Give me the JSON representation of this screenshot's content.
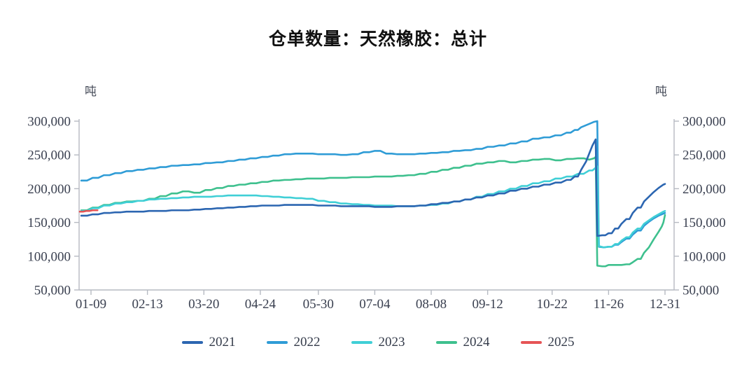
{
  "title": "仓单数量：天然橡胶：总计",
  "y_axis": {
    "unit": "吨",
    "tick_values": [
      50000,
      100000,
      150000,
      200000,
      250000,
      300000
    ],
    "tick_labels": [
      "50,000",
      "100,000",
      "150,000",
      "200,000",
      "250,000",
      "300,000"
    ]
  },
  "x_axis": {
    "tick_labels": [
      "01-09",
      "02-13",
      "03-20",
      "04-24",
      "05-30",
      "07-04",
      "08-08",
      "09-12",
      "10-22",
      "11-26",
      "12-31"
    ],
    "tick_days": [
      9,
      44,
      79,
      114,
      150,
      185,
      220,
      255,
      295,
      330,
      365
    ]
  },
  "chart_data": {
    "type": "line",
    "title": "仓单数量：天然橡胶：总计",
    "ylabel": "吨",
    "ylim": [
      50000,
      300000
    ],
    "x_unit": "day-of-year",
    "grid": false,
    "legend_position": "bottom",
    "x_ticks": [
      {
        "day": 9,
        "label": "01-09"
      },
      {
        "day": 44,
        "label": "02-13"
      },
      {
        "day": 79,
        "label": "03-20"
      },
      {
        "day": 114,
        "label": "04-24"
      },
      {
        "day": 150,
        "label": "05-30"
      },
      {
        "day": 185,
        "label": "07-04"
      },
      {
        "day": 220,
        "label": "08-08"
      },
      {
        "day": 255,
        "label": "09-12"
      },
      {
        "day": 295,
        "label": "10-22"
      },
      {
        "day": 330,
        "label": "11-26"
      },
      {
        "day": 365,
        "label": "12-31"
      }
    ],
    "series": [
      {
        "name": "2022",
        "color": "#2f9cd6",
        "points": [
          [
            3,
            212000
          ],
          [
            10,
            216000
          ],
          [
            17,
            220000
          ],
          [
            24,
            223000
          ],
          [
            31,
            226000
          ],
          [
            38,
            228000
          ],
          [
            45,
            230000
          ],
          [
            52,
            232000
          ],
          [
            59,
            234000
          ],
          [
            66,
            235000
          ],
          [
            73,
            236000
          ],
          [
            80,
            238000
          ],
          [
            87,
            239000
          ],
          [
            94,
            241000
          ],
          [
            101,
            243000
          ],
          [
            108,
            245000
          ],
          [
            115,
            247000
          ],
          [
            122,
            249000
          ],
          [
            129,
            251000
          ],
          [
            136,
            252000
          ],
          [
            143,
            252000
          ],
          [
            150,
            251000
          ],
          [
            157,
            251000
          ],
          [
            164,
            250000
          ],
          [
            171,
            251000
          ],
          [
            178,
            254000
          ],
          [
            185,
            256000
          ],
          [
            192,
            252000
          ],
          [
            199,
            251000
          ],
          [
            206,
            251000
          ],
          [
            213,
            252000
          ],
          [
            220,
            253000
          ],
          [
            227,
            254000
          ],
          [
            234,
            256000
          ],
          [
            241,
            257000
          ],
          [
            248,
            259000
          ],
          [
            255,
            262000
          ],
          [
            262,
            264000
          ],
          [
            269,
            267000
          ],
          [
            276,
            270000
          ],
          [
            283,
            274000
          ],
          [
            290,
            276000
          ],
          [
            297,
            279000
          ],
          [
            304,
            283000
          ],
          [
            309,
            287000
          ],
          [
            313,
            291000
          ],
          [
            316,
            294000
          ],
          [
            319,
            297000
          ],
          [
            321,
            299000
          ],
          [
            323,
            300000
          ],
          [
            324,
            114000
          ],
          [
            327,
            113000
          ],
          [
            330,
            114000
          ],
          [
            334,
            117000
          ],
          [
            338,
            121000
          ],
          [
            341,
            126000
          ],
          [
            345,
            132000
          ],
          [
            348,
            138000
          ],
          [
            352,
            145000
          ],
          [
            355,
            151000
          ],
          [
            358,
            156000
          ],
          [
            361,
            160000
          ],
          [
            364,
            163000
          ],
          [
            365,
            164000
          ]
        ]
      },
      {
        "name": "2024",
        "color": "#3ec08e",
        "points": [
          [
            3,
            168000
          ],
          [
            10,
            172000
          ],
          [
            17,
            176000
          ],
          [
            24,
            179000
          ],
          [
            31,
            181000
          ],
          [
            38,
            182000
          ],
          [
            45,
            185000
          ],
          [
            52,
            189000
          ],
          [
            59,
            193000
          ],
          [
            66,
            196000
          ],
          [
            73,
            194000
          ],
          [
            80,
            198000
          ],
          [
            87,
            201000
          ],
          [
            94,
            204000
          ],
          [
            101,
            206000
          ],
          [
            108,
            208000
          ],
          [
            115,
            210000
          ],
          [
            122,
            212000
          ],
          [
            129,
            213000
          ],
          [
            136,
            214000
          ],
          [
            143,
            215000
          ],
          [
            150,
            215000
          ],
          [
            157,
            216000
          ],
          [
            164,
            216000
          ],
          [
            171,
            217000
          ],
          [
            178,
            217000
          ],
          [
            185,
            218000
          ],
          [
            192,
            218000
          ],
          [
            199,
            219000
          ],
          [
            206,
            220000
          ],
          [
            213,
            222000
          ],
          [
            220,
            225000
          ],
          [
            227,
            228000
          ],
          [
            234,
            231000
          ],
          [
            241,
            234000
          ],
          [
            248,
            237000
          ],
          [
            255,
            239000
          ],
          [
            262,
            241000
          ],
          [
            269,
            239000
          ],
          [
            276,
            241000
          ],
          [
            283,
            243000
          ],
          [
            290,
            244000
          ],
          [
            297,
            242000
          ],
          [
            304,
            244000
          ],
          [
            311,
            245000
          ],
          [
            318,
            243000
          ],
          [
            321,
            245000
          ],
          [
            322,
            247000
          ],
          [
            323,
            86000
          ],
          [
            326,
            85000
          ],
          [
            330,
            87000
          ],
          [
            334,
            87000
          ],
          [
            338,
            87000
          ],
          [
            341,
            88000
          ],
          [
            345,
            91000
          ],
          [
            348,
            96000
          ],
          [
            352,
            105000
          ],
          [
            355,
            113000
          ],
          [
            358,
            125000
          ],
          [
            361,
            136000
          ],
          [
            363,
            144000
          ],
          [
            364,
            150000
          ],
          [
            365,
            161000
          ]
        ]
      },
      {
        "name": "2023",
        "color": "#40cfd6",
        "points": [
          [
            3,
            167000
          ],
          [
            10,
            171000
          ],
          [
            17,
            175000
          ],
          [
            24,
            178000
          ],
          [
            31,
            180000
          ],
          [
            38,
            182000
          ],
          [
            45,
            184000
          ],
          [
            52,
            185000
          ],
          [
            59,
            186000
          ],
          [
            66,
            187000
          ],
          [
            73,
            188000
          ],
          [
            80,
            188000
          ],
          [
            87,
            189000
          ],
          [
            94,
            190000
          ],
          [
            101,
            190000
          ],
          [
            108,
            190000
          ],
          [
            115,
            189000
          ],
          [
            122,
            188000
          ],
          [
            129,
            187000
          ],
          [
            136,
            186000
          ],
          [
            143,
            185000
          ],
          [
            150,
            182000
          ],
          [
            157,
            180000
          ],
          [
            164,
            178000
          ],
          [
            171,
            177000
          ],
          [
            178,
            176000
          ],
          [
            185,
            175000
          ],
          [
            192,
            175000
          ],
          [
            199,
            174000
          ],
          [
            206,
            174000
          ],
          [
            213,
            175000
          ],
          [
            220,
            176000
          ],
          [
            227,
            178000
          ],
          [
            234,
            181000
          ],
          [
            241,
            184000
          ],
          [
            248,
            188000
          ],
          [
            255,
            192000
          ],
          [
            262,
            196000
          ],
          [
            269,
            200000
          ],
          [
            276,
            204000
          ],
          [
            283,
            208000
          ],
          [
            290,
            211000
          ],
          [
            297,
            215000
          ],
          [
            304,
            218000
          ],
          [
            311,
            222000
          ],
          [
            318,
            227000
          ],
          [
            322,
            231000
          ],
          [
            323,
            233000
          ],
          [
            324,
            115000
          ],
          [
            327,
            113000
          ],
          [
            330,
            114000
          ],
          [
            334,
            118000
          ],
          [
            338,
            123000
          ],
          [
            341,
            128000
          ],
          [
            345,
            135000
          ],
          [
            348,
            141000
          ],
          [
            352,
            148000
          ],
          [
            355,
            153000
          ],
          [
            358,
            158000
          ],
          [
            361,
            162000
          ],
          [
            364,
            166000
          ],
          [
            365,
            167000
          ]
        ]
      },
      {
        "name": "2021",
        "color": "#2c66b1",
        "points": [
          [
            3,
            160000
          ],
          [
            10,
            162000
          ],
          [
            17,
            164000
          ],
          [
            24,
            165000
          ],
          [
            31,
            166000
          ],
          [
            38,
            166000
          ],
          [
            45,
            167000
          ],
          [
            52,
            167000
          ],
          [
            59,
            168000
          ],
          [
            66,
            168000
          ],
          [
            73,
            169000
          ],
          [
            80,
            170000
          ],
          [
            87,
            171000
          ],
          [
            94,
            172000
          ],
          [
            101,
            173000
          ],
          [
            108,
            174000
          ],
          [
            115,
            175000
          ],
          [
            122,
            175000
          ],
          [
            129,
            176000
          ],
          [
            136,
            176000
          ],
          [
            143,
            176000
          ],
          [
            150,
            175000
          ],
          [
            157,
            175000
          ],
          [
            164,
            174000
          ],
          [
            171,
            174000
          ],
          [
            178,
            174000
          ],
          [
            185,
            173000
          ],
          [
            192,
            173000
          ],
          [
            199,
            174000
          ],
          [
            206,
            174000
          ],
          [
            213,
            175000
          ],
          [
            220,
            177000
          ],
          [
            227,
            179000
          ],
          [
            234,
            181000
          ],
          [
            241,
            184000
          ],
          [
            248,
            187000
          ],
          [
            255,
            190000
          ],
          [
            262,
            193000
          ],
          [
            269,
            197000
          ],
          [
            276,
            200000
          ],
          [
            283,
            203000
          ],
          [
            290,
            206000
          ],
          [
            297,
            209000
          ],
          [
            304,
            213000
          ],
          [
            309,
            218000
          ],
          [
            313,
            228000
          ],
          [
            316,
            240000
          ],
          [
            318,
            252000
          ],
          [
            320,
            264000
          ],
          [
            322,
            273000
          ],
          [
            323,
            130000
          ],
          [
            326,
            131000
          ],
          [
            330,
            134000
          ],
          [
            334,
            141000
          ],
          [
            338,
            148000
          ],
          [
            341,
            155000
          ],
          [
            345,
            164000
          ],
          [
            348,
            172000
          ],
          [
            352,
            181000
          ],
          [
            355,
            188000
          ],
          [
            358,
            195000
          ],
          [
            361,
            201000
          ],
          [
            364,
            206000
          ],
          [
            365,
            207000
          ]
        ]
      },
      {
        "name": "2025",
        "color": "#e65456",
        "points": [
          [
            2,
            166000
          ],
          [
            6,
            167000
          ],
          [
            10,
            168000
          ],
          [
            13,
            168000
          ]
        ]
      }
    ]
  },
  "legend": {
    "order": [
      "2021",
      "2022",
      "2023",
      "2024",
      "2025"
    ]
  }
}
